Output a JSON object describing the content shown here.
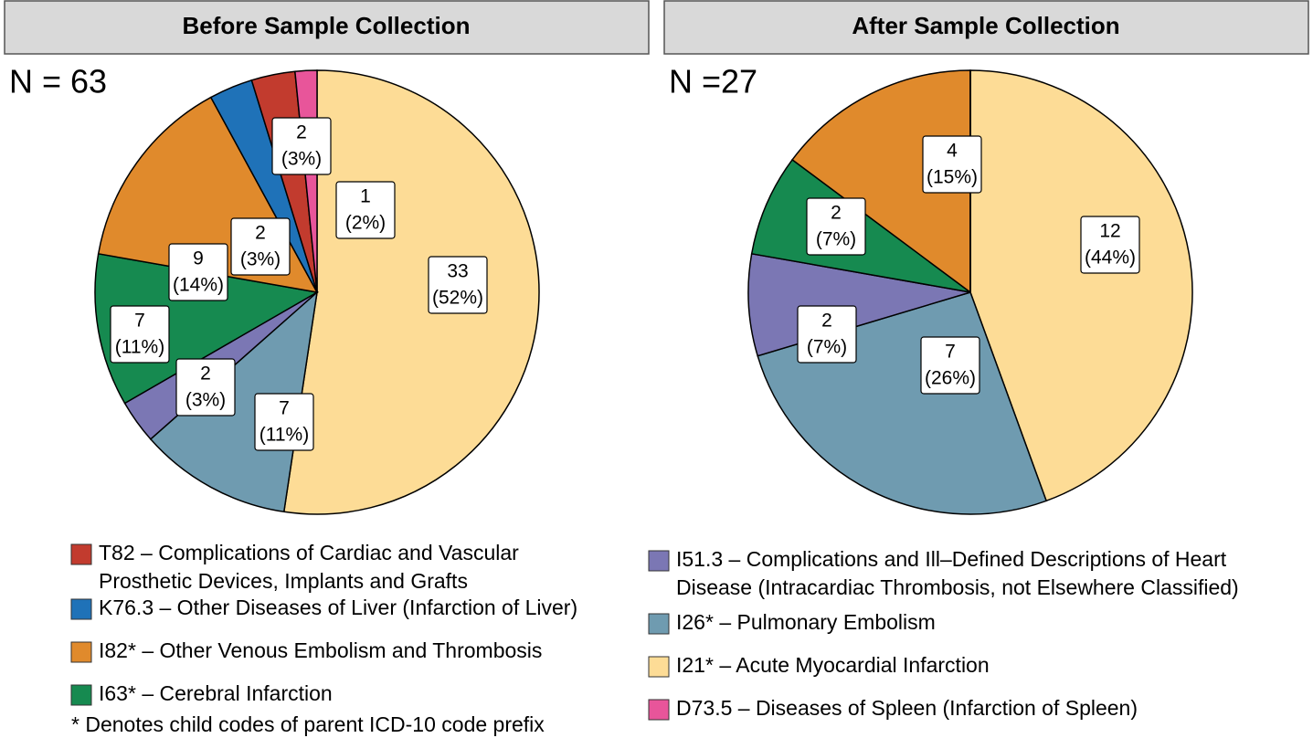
{
  "legend": {
    "categories": [
      [
        "I21* – Acute Myocardial Infarction"
      ],
      [
        "I26* – Pulmonary Embolism"
      ],
      [
        "I51.3 – Complications and Ill–Defined Descriptions of Heart",
        "Disease (Intracardiac Thrombosis, not Elsewhere Classified)"
      ],
      [
        "I63* – Cerebral Infarction"
      ],
      [
        "I82* – Other Venous Embolism and Thrombosis"
      ],
      [
        "K76.3 – Other Diseases of Liver (Infarction of Liver)"
      ],
      [
        "T82 – Complications of Cardiac and Vascular",
        "Prosthetic Devices, Implants and Grafts"
      ],
      [
        "D73.5 – Diseases of Spleen (Infarction of Spleen)"
      ]
    ],
    "colors": [
      "#fddc96",
      "#6f9bb0",
      "#7b77b4",
      "#168a50",
      "#e08a2c",
      "#1f72b8",
      "#c23b2e",
      "#e8559a"
    ],
    "note": "* Denotes child codes of parent ICD-10 code prefix"
  },
  "chart_data": [
    {
      "type": "pie",
      "title": "Before Sample Collection",
      "annotation": "N = 63",
      "values": [
        33,
        7,
        2,
        7,
        9,
        2,
        2,
        1
      ],
      "percent_labels": [
        "(52%)",
        "(11%)",
        "(3%)",
        "(11%)",
        "(14%)",
        "(3%)",
        "(3%)",
        "(2%)"
      ]
    },
    {
      "type": "pie",
      "title": "After Sample Collection",
      "annotation": "N =27",
      "values": [
        12,
        7,
        2,
        2,
        4,
        0,
        0,
        0
      ],
      "percent_labels": [
        "(44%)",
        "(26%)",
        "(7%)",
        "(7%)",
        "(15%)",
        null,
        null,
        null
      ]
    }
  ]
}
